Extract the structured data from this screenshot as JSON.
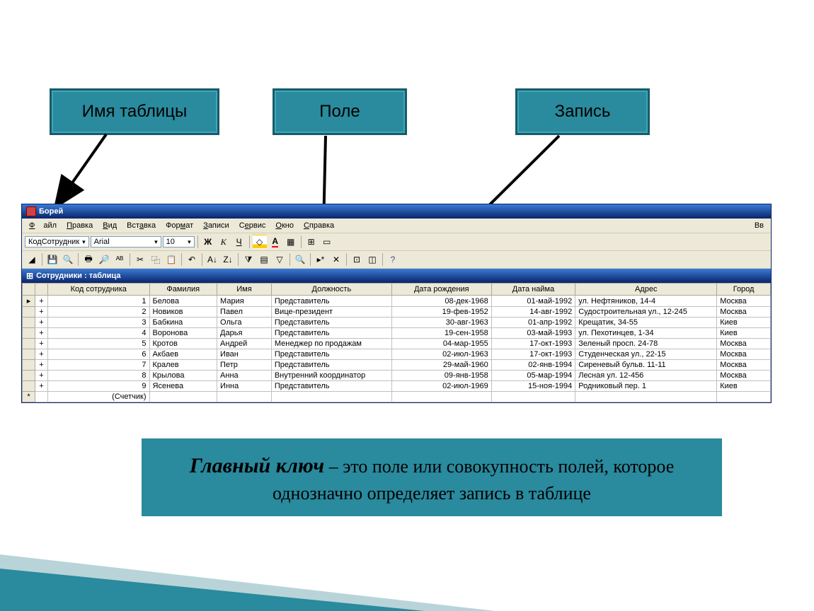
{
  "annotations": {
    "tableName": "Имя таблицы",
    "field": "Поле",
    "record": "Запись"
  },
  "app": {
    "title": "Борей",
    "menubar": [
      "Файл",
      "Правка",
      "Вид",
      "Вставка",
      "Формат",
      "Записи",
      "Сервис",
      "Окно",
      "Справка"
    ],
    "menubar_right": "Вв",
    "format_toolbar": {
      "field_selector": "КодСотрудник",
      "font_name": "Arial",
      "font_size": "10",
      "btn_bold": "Ж",
      "btn_italic": "К",
      "btn_underline": "Ч"
    },
    "table_window_title": "Сотрудники : таблица"
  },
  "table": {
    "columns": [
      "Код сотрудника",
      "Фамилия",
      "Имя",
      "Должность",
      "Дата рождения",
      "Дата найма",
      "Адрес",
      "Город"
    ],
    "rows": [
      {
        "id": "1",
        "Фамилия": "Белова",
        "Имя": "Мария",
        "Должность": "Представитель",
        "Дата рождения": "08-дек-1968",
        "Дата найма": "01-май-1992",
        "Адрес": "ул. Нефтяников, 14-4",
        "Город": "Москва"
      },
      {
        "id": "2",
        "Фамилия": "Новиков",
        "Имя": "Павел",
        "Должность": "Вице-президент",
        "Дата рождения": "19-фев-1952",
        "Дата найма": "14-авг-1992",
        "Адрес": "Судостроительная ул., 12-245",
        "Город": "Москва"
      },
      {
        "id": "3",
        "Фамилия": "Бабкина",
        "Имя": "Ольга",
        "Должность": "Представитель",
        "Дата рождения": "30-авг-1963",
        "Дата найма": "01-апр-1992",
        "Адрес": "Крещатик, 34-55",
        "Город": "Киев"
      },
      {
        "id": "4",
        "Фамилия": "Воронова",
        "Имя": "Дарья",
        "Должность": "Представитель",
        "Дата рождения": "19-сен-1958",
        "Дата найма": "03-май-1993",
        "Адрес": "ул. Пехотинцев, 1-34",
        "Город": "Киев"
      },
      {
        "id": "5",
        "Фамилия": "Кротов",
        "Имя": "Андрей",
        "Должность": "Менеджер по продажам",
        "Дата рождения": "04-мар-1955",
        "Дата найма": "17-окт-1993",
        "Адрес": "Зеленый просп. 24-78",
        "Город": "Москва"
      },
      {
        "id": "6",
        "Фамилия": "Акбаев",
        "Имя": "Иван",
        "Должность": "Представитель",
        "Дата рождения": "02-июл-1963",
        "Дата найма": "17-окт-1993",
        "Адрес": "Студенческая ул., 22-15",
        "Город": "Москва"
      },
      {
        "id": "7",
        "Фамилия": "Кралев",
        "Имя": "Петр",
        "Должность": "Представитель",
        "Дата рождения": "29-май-1960",
        "Дата найма": "02-янв-1994",
        "Адрес": "Сиреневый бульв. 11-11",
        "Город": "Москва"
      },
      {
        "id": "8",
        "Фамилия": "Крылова",
        "Имя": "Анна",
        "Должность": "Внутренний координатор",
        "Дата рождения": "09-янв-1958",
        "Дата найма": "05-мар-1994",
        "Адрес": "Лесная ул. 12-456",
        "Город": "Москва"
      },
      {
        "id": "9",
        "Фамилия": "Ясенева",
        "Имя": "Инна",
        "Должность": "Представитель",
        "Дата рождения": "02-июл-1969",
        "Дата найма": "15-ноя-1994",
        "Адрес": "Родниковый пер. 1",
        "Город": "Киев"
      }
    ],
    "counter_label": "(Счетчик)",
    "current_marker": "▸",
    "new_marker": "*",
    "expand_marker": "+"
  },
  "definition": {
    "term": "Главный ключ",
    "text": " – это поле или совокупность полей, которое однозначно определяет запись в таблице"
  },
  "colors": {
    "teal": "#2a8a9e",
    "teal_border": "#1a5a68",
    "win_blue": "#0a246a",
    "soft_teal": "#b8d4d8"
  }
}
